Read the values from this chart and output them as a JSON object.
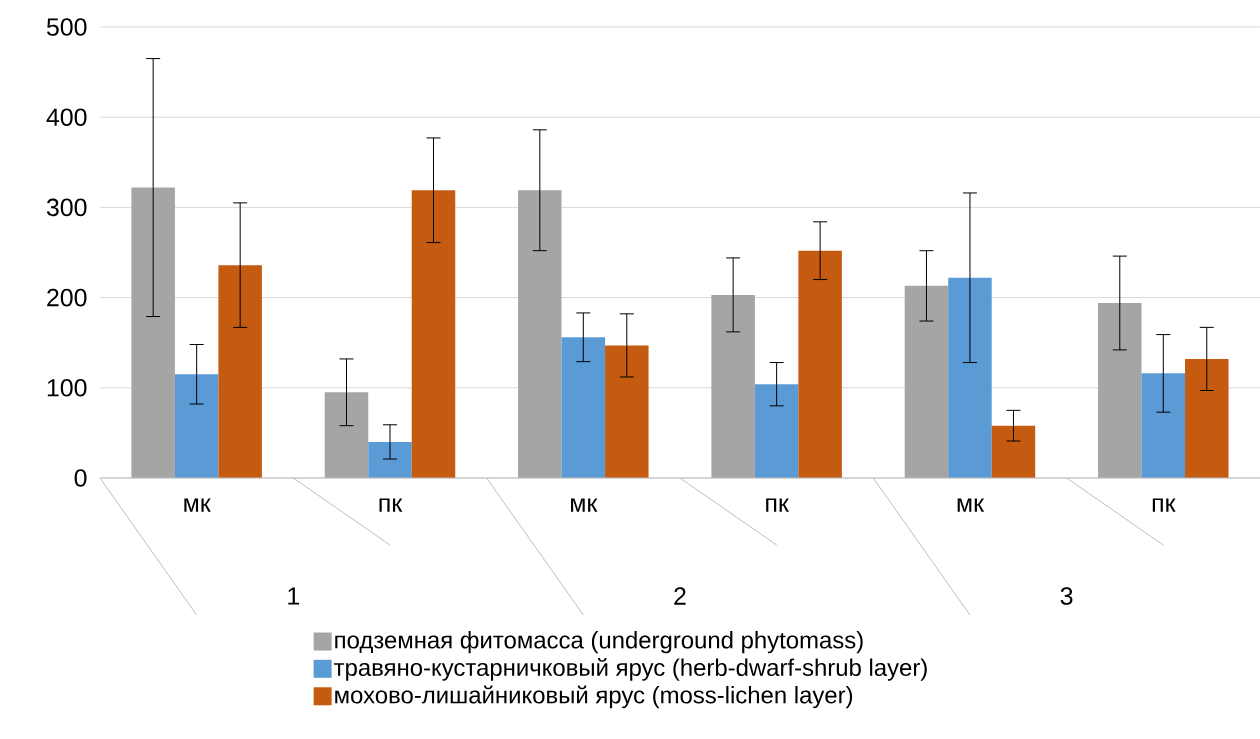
{
  "chart_data": {
    "type": "bar",
    "categories": [
      "мк",
      "пк",
      "мк",
      "пк",
      "мк",
      "пк"
    ],
    "series": [
      {
        "name": "подземная фитомасса (underground phytomass)",
        "color": "#a5a5a5",
        "values": [
          322,
          95,
          319,
          203,
          213,
          194
        ],
        "errors": [
          143,
          37,
          67,
          41,
          39,
          52
        ]
      },
      {
        "name": "травяно-кустарничковый ярус (herb-dwarf-shrub layer)",
        "color": "#5b9bd5",
        "values": [
          115,
          40,
          156,
          104,
          222,
          116
        ],
        "errors": [
          33,
          19,
          27,
          24,
          94,
          43
        ]
      },
      {
        "name": "мохово-лишайниковый ярус (moss-lichen layer)",
        "color": "#c55a11",
        "values": [
          236,
          319,
          147,
          252,
          58,
          132
        ],
        "errors": [
          69,
          58,
          35,
          32,
          17,
          35
        ]
      }
    ],
    "annotations": [
      "1",
      "2",
      "3"
    ],
    "ylim": [
      0,
      500
    ],
    "yticks": [
      0,
      100,
      200,
      300,
      400,
      500
    ],
    "grid": "y",
    "legend": "bottom"
  }
}
